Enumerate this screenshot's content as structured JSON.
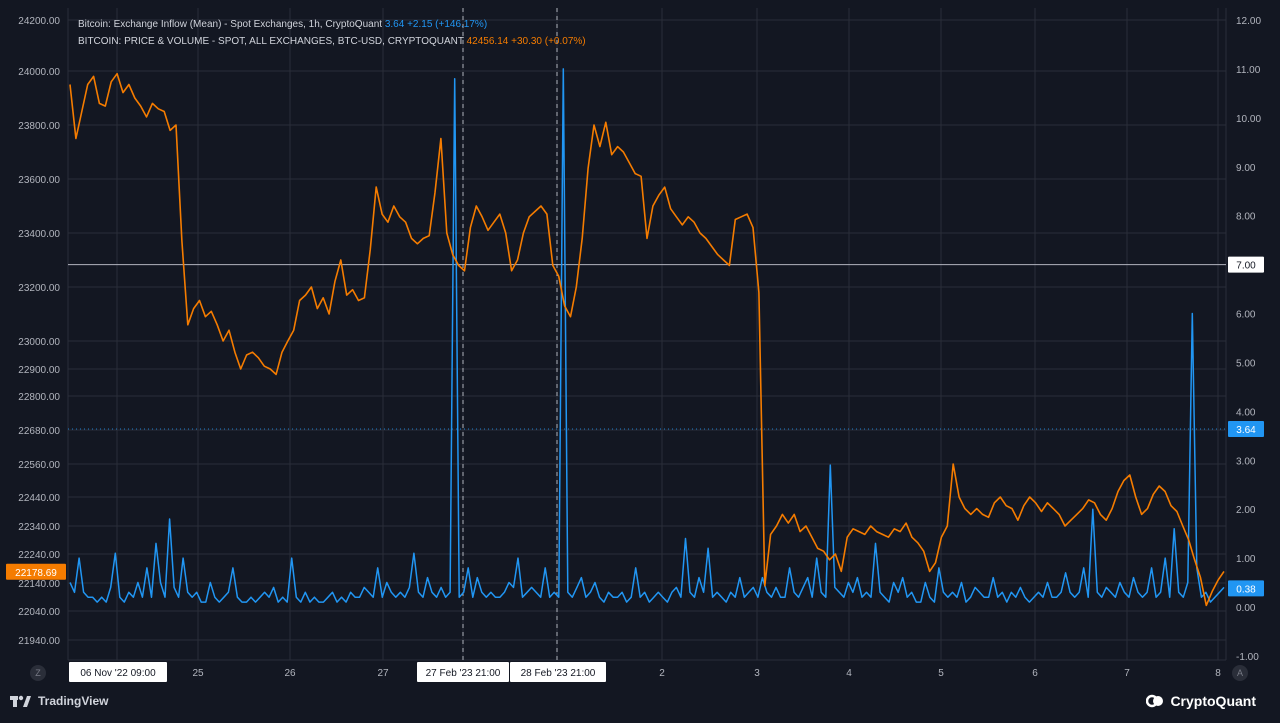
{
  "legend": {
    "series1_label": "Bitcoin: Exchange Inflow (Mean) - Spot Exchanges, 1h, CryptoQuant",
    "series1_value": "3.64",
    "series1_change": "+2.15 (+146.17%)",
    "series2_label": "BITCOIN: PRICE & VOLUME - SPOT, ALL EXCHANGES, BTC-USD, CRYPTOQUANT",
    "series2_value": "42456.14",
    "series2_change": "+30.30 (+0.07%)"
  },
  "footer": {
    "tradingview": "TradingView",
    "cryptoquant": "CryptoQuant",
    "left_corner": "Z",
    "right_corner": "A"
  },
  "colors": {
    "background": "#131722",
    "price": "#f57c00",
    "inflow": "#2196f3",
    "grid": "#2a2e39",
    "text": "#b2b5be"
  },
  "chart_data": {
    "type": "line",
    "x_labels": [
      "06 Nov '22  09:00",
      "25",
      "26",
      "27",
      "27 Feb '23   21:00",
      "28 Feb '23   21:00",
      "2",
      "3",
      "4",
      "5",
      "6",
      "7",
      "8"
    ],
    "left_axis": {
      "ticks": [
        "24200.00",
        "24000.00",
        "23800.00",
        "23600.00",
        "23400.00",
        "23200.00",
        "23000.00",
        "22900.00",
        "22800.00",
        "22680.00",
        "22560.00",
        "22440.00",
        "22340.00",
        "22240.00",
        "22140.00",
        "22040.00",
        "21940.00"
      ],
      "current_label": "22178.69"
    },
    "right_axis": {
      "ticks": [
        "12.00",
        "11.00",
        "10.00",
        "9.00",
        "8.00",
        "7.00",
        "6.00",
        "5.00",
        "4.00",
        "3.00",
        "2.00",
        "1.00",
        "0.00",
        "-1.00"
      ],
      "ylim": [
        -1,
        12
      ],
      "crosshair_label": "7.00",
      "inflow_label": "3.64",
      "last_label": "0.38"
    },
    "series": [
      {
        "name": "BITCOIN: PRICE & VOLUME - SPOT, ALL EXCHANGES, BTC-USD, CRYPTOQUANT",
        "axis": "left",
        "color": "#f57c00",
        "values": [
          23950,
          23750,
          23850,
          23950,
          23980,
          23880,
          23870,
          23960,
          23990,
          23920,
          23950,
          23900,
          23870,
          23830,
          23880,
          23860,
          23850,
          23780,
          23800,
          23370,
          23060,
          23120,
          23150,
          23090,
          23110,
          23060,
          23000,
          23040,
          22960,
          22900,
          22950,
          22960,
          22940,
          22910,
          22900,
          22880,
          22960,
          23000,
          23040,
          23150,
          23170,
          23200,
          23120,
          23160,
          23100,
          23220,
          23300,
          23170,
          23190,
          23150,
          23160,
          23340,
          23570,
          23470,
          23440,
          23500,
          23460,
          23440,
          23380,
          23360,
          23380,
          23390,
          23550,
          23750,
          23400,
          23320,
          23280,
          23260,
          23420,
          23500,
          23460,
          23410,
          23440,
          23470,
          23400,
          23260,
          23300,
          23400,
          23460,
          23480,
          23500,
          23470,
          23280,
          23240,
          23130,
          23090,
          23200,
          23380,
          23640,
          23800,
          23720,
          23810,
          23690,
          23720,
          23700,
          23660,
          23620,
          23610,
          23380,
          23500,
          23540,
          23570,
          23490,
          23460,
          23430,
          23460,
          23440,
          23400,
          23380,
          23350,
          23320,
          23300,
          23280,
          23450,
          23460,
          23470,
          23420,
          23180,
          22130,
          22310,
          22340,
          22380,
          22350,
          22380,
          22320,
          22340,
          22300,
          22260,
          22250,
          22220,
          22240,
          22180,
          22300,
          22330,
          22320,
          22310,
          22340,
          22320,
          22310,
          22300,
          22330,
          22320,
          22350,
          22300,
          22280,
          22250,
          22180,
          22210,
          22300,
          22340,
          22560,
          22440,
          22400,
          22380,
          22400,
          22380,
          22370,
          22420,
          22440,
          22410,
          22400,
          22360,
          22410,
          22440,
          22420,
          22390,
          22420,
          22400,
          22380,
          22340,
          22360,
          22380,
          22400,
          22430,
          22420,
          22380,
          22360,
          22400,
          22460,
          22500,
          22520,
          22440,
          22380,
          22400,
          22450,
          22480,
          22460,
          22410,
          22390,
          22340,
          22290,
          22220,
          22160,
          22060,
          22110,
          22150,
          22180
        ]
      },
      {
        "name": "Bitcoin: Exchange Inflow (Mean) - Spot Exchanges, 1h, CryptoQuant",
        "axis": "right",
        "color": "#2196f3",
        "values": [
          0.5,
          0.3,
          1.0,
          0.3,
          0.2,
          0.2,
          0.1,
          0.2,
          0.1,
          0.4,
          1.1,
          0.2,
          0.1,
          0.3,
          0.2,
          0.5,
          0.2,
          0.8,
          0.2,
          1.3,
          0.5,
          0.2,
          1.8,
          0.4,
          0.2,
          1.0,
          0.3,
          0.2,
          0.3,
          0.1,
          0.1,
          0.5,
          0.2,
          0.1,
          0.2,
          0.3,
          0.8,
          0.2,
          0.1,
          0.1,
          0.2,
          0.1,
          0.2,
          0.3,
          0.2,
          0.4,
          0.1,
          0.2,
          0.1,
          1.0,
          0.2,
          0.1,
          0.3,
          0.1,
          0.2,
          0.1,
          0.1,
          0.2,
          0.3,
          0.1,
          0.2,
          0.1,
          0.3,
          0.2,
          0.2,
          0.4,
          0.3,
          0.2,
          0.8,
          0.2,
          0.5,
          0.3,
          0.2,
          0.3,
          0.2,
          0.4,
          1.1,
          0.3,
          0.2,
          0.6,
          0.3,
          0.2,
          0.4,
          0.2,
          0.3,
          10.8,
          0.2,
          0.3,
          0.8,
          0.2,
          0.6,
          0.3,
          0.2,
          0.3,
          0.2,
          0.2,
          0.3,
          0.5,
          0.4,
          1.0,
          0.2,
          0.3,
          0.4,
          0.3,
          0.2,
          0.8,
          0.2,
          0.3,
          0.2,
          11.0,
          0.3,
          0.2,
          0.4,
          0.6,
          0.2,
          0.3,
          0.5,
          0.2,
          0.1,
          0.3,
          0.2,
          0.2,
          0.3,
          0.1,
          0.2,
          0.8,
          0.2,
          0.3,
          0.1,
          0.2,
          0.3,
          0.2,
          0.1,
          0.3,
          0.4,
          0.2,
          1.4,
          0.3,
          0.2,
          0.6,
          0.3,
          1.2,
          0.2,
          0.3,
          0.2,
          0.1,
          0.3,
          0.2,
          0.6,
          0.2,
          0.3,
          0.4,
          0.2,
          0.6,
          0.3,
          0.2,
          0.4,
          0.2,
          0.2,
          0.8,
          0.3,
          0.2,
          0.4,
          0.6,
          0.2,
          1.0,
          0.3,
          0.2,
          2.9,
          0.4,
          0.3,
          0.2,
          0.5,
          0.3,
          0.6,
          0.2,
          0.3,
          0.2,
          1.3,
          0.3,
          0.2,
          0.1,
          0.5,
          0.3,
          0.6,
          0.2,
          0.3,
          0.1,
          0.1,
          0.5,
          0.2,
          0.1,
          0.8,
          0.3,
          0.2,
          0.3,
          0.2,
          0.5,
          0.1,
          0.2,
          0.4,
          0.3,
          0.2,
          0.2,
          0.6,
          0.2,
          0.3,
          0.1,
          0.3,
          0.2,
          0.4,
          0.2,
          0.1,
          0.2,
          0.3,
          0.2,
          0.5,
          0.2,
          0.2,
          0.3,
          0.7,
          0.3,
          0.2,
          0.3,
          0.8,
          0.2,
          2.0,
          0.3,
          0.2,
          0.4,
          0.3,
          0.2,
          0.5,
          0.3,
          0.2,
          0.6,
          0.3,
          0.2,
          0.3,
          0.8,
          0.2,
          0.3,
          1.0,
          0.2,
          1.6,
          0.3,
          0.2,
          0.5,
          6.0,
          0.8,
          0.2,
          0.3,
          0.1,
          0.2,
          0.3,
          0.4
        ]
      }
    ],
    "markers": [
      "27 Feb '23   21:00",
      "28 Feb '23   21:00"
    ],
    "crosshair_value": 7.0,
    "grid": true,
    "legend_position": "top-left"
  }
}
